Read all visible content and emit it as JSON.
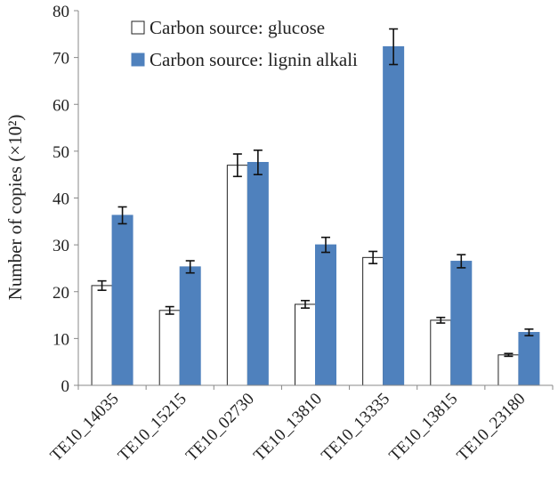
{
  "chart_data": {
    "type": "bar",
    "title": "",
    "xlabel": "",
    "ylabel": "Number of copies (×10²)",
    "ylim": [
      0,
      80
    ],
    "yticks": [
      0,
      10,
      20,
      30,
      40,
      50,
      60,
      70,
      80
    ],
    "grid": false,
    "legend_position": "top-center",
    "categories": [
      "TE10_14035",
      "TE10_15215",
      "TE10_02730",
      "TE10_13810",
      "TE10_13335",
      "TE10_13815",
      "TE10_23180"
    ],
    "series": [
      {
        "name": "Carbon source: glucose",
        "color": "#ffffff",
        "values": [
          21.3,
          16.0,
          47.0,
          17.3,
          27.3,
          13.9,
          6.5
        ],
        "errors": [
          1.0,
          0.8,
          2.4,
          0.8,
          1.3,
          0.6,
          0.3
        ]
      },
      {
        "name": "Carbon source: lignin alkali",
        "color": "#4f81bd",
        "values": [
          36.3,
          25.3,
          47.6,
          30.0,
          72.3,
          26.5,
          11.3
        ],
        "errors": [
          1.8,
          1.3,
          2.6,
          1.6,
          3.8,
          1.4,
          0.7
        ]
      }
    ]
  }
}
